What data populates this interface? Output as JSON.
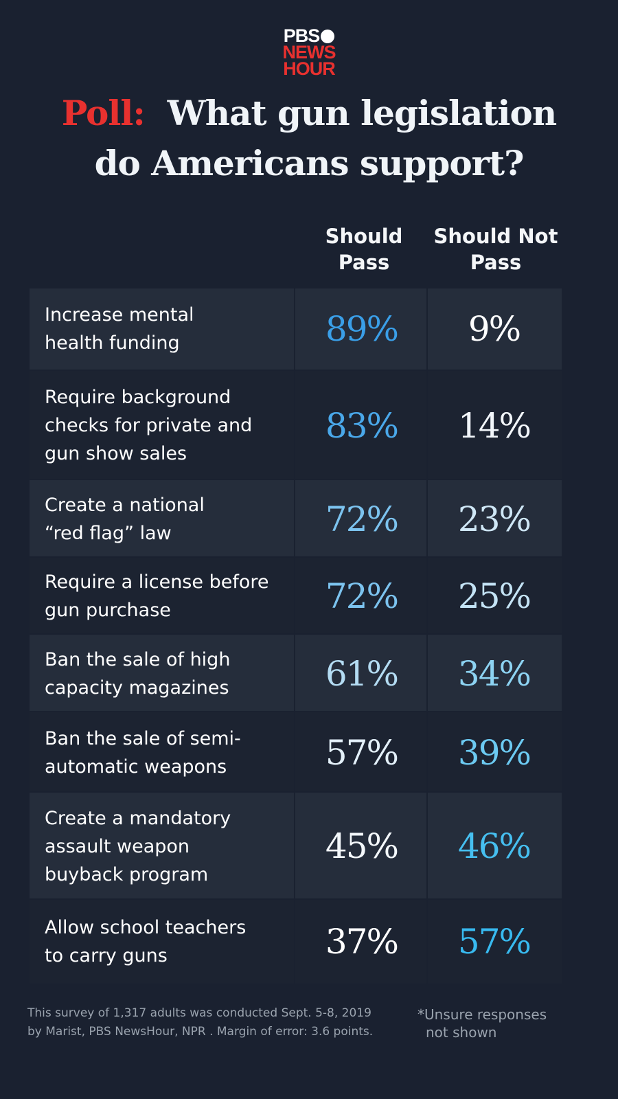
{
  "logo": {
    "line1": "PBS",
    "line2": "NEWS",
    "line3": "HOUR"
  },
  "title": {
    "lead": "Poll:",
    "line1": "What gun legislation",
    "line2": "do Americans support?"
  },
  "table": {
    "headers": [
      [
        "Should",
        "Pass"
      ],
      [
        "Should Not",
        "Pass"
      ]
    ],
    "rows": [
      {
        "policy": [
          "Increase mental",
          "health funding"
        ],
        "should_pass": "89%",
        "should_not_pass": "9%",
        "pass_color": "#3a9fe8",
        "not_pass_color": "#ffffff"
      },
      {
        "policy": [
          "Require background",
          "checks for private and",
          "gun show sales"
        ],
        "should_pass": "83%",
        "should_not_pass": "14%",
        "pass_color": "#4aa8ea",
        "not_pass_color": "#f2f6fa"
      },
      {
        "policy": [
          "Create a national",
          "“red flag” law"
        ],
        "should_pass": "72%",
        "should_not_pass": "23%",
        "pass_color": "#7cc3ef",
        "not_pass_color": "#cfe7f6"
      },
      {
        "policy": [
          "Require a license before",
          "gun purchase"
        ],
        "should_pass": "72%",
        "should_not_pass": "25%",
        "pass_color": "#7cc3ef",
        "not_pass_color": "#c4e3f5"
      },
      {
        "policy": [
          "Ban the sale of high",
          "capacity magazines"
        ],
        "should_pass": "61%",
        "should_not_pass": "34%",
        "pass_color": "#b4dcf3",
        "not_pass_color": "#8dd3f2"
      },
      {
        "policy": [
          "Ban the sale of semi-",
          "automatic weapons"
        ],
        "should_pass": "57%",
        "should_not_pass": "39%",
        "pass_color": "#e4f1fa",
        "not_pass_color": "#6ccaf2"
      },
      {
        "policy": [
          "Create a mandatory",
          "assault weapon",
          "buyback program"
        ],
        "should_pass": "45%",
        "should_not_pass": "46%",
        "pass_color": "#f4f8fb",
        "not_pass_color": "#46bff0"
      },
      {
        "policy": [
          "Allow school teachers",
          "to carry guns"
        ],
        "should_pass": "37%",
        "should_not_pass": "57%",
        "pass_color": "#ffffff",
        "not_pass_color": "#38baf0"
      }
    ]
  },
  "footer": {
    "source": [
      "This survey of 1,317 adults was conducted Sept. 5-8, 2019",
      "by Marist, PBS NewsHour, NPR . Margin of error: 3.6  points."
    ],
    "note": [
      "*Unsure responses",
      "not shown"
    ]
  }
}
